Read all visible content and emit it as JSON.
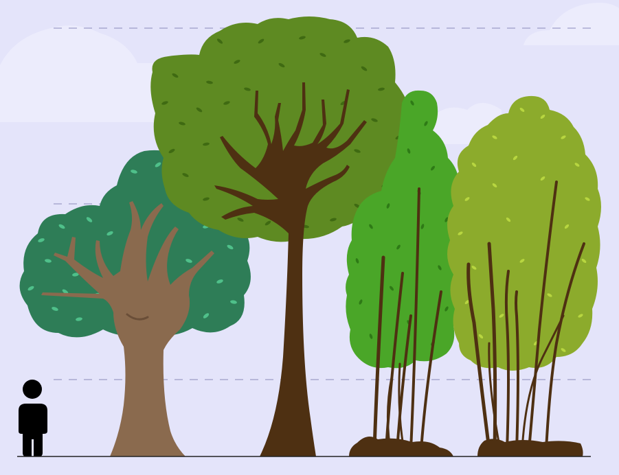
{
  "scene": {
    "background_color": "#e4e4fa",
    "cloud_color": "#ececfc",
    "guide_line_color": "#9c9cc8",
    "guide_line_count": 3,
    "ground_line_color": "#222222"
  },
  "figures": {
    "human": {
      "icon": "person-icon",
      "color": "#000000"
    },
    "trees": [
      {
        "id": "tree-1",
        "canopy_color": "#2e7d57",
        "leaf_mark_color": "#4fc08a",
        "trunk_color": "#8a6a4e"
      },
      {
        "id": "tree-2",
        "canopy_color": "#5e8a22",
        "leaf_mark_color": "#3f6a12",
        "trunk_color": "#4e3012"
      },
      {
        "id": "tree-3",
        "canopy_color": "#4aa628",
        "leaf_mark_color": "#2e7a16",
        "trunk_color": "#4e3012"
      },
      {
        "id": "tree-4",
        "canopy_color": "#8cab2c",
        "leaf_mark_color": "#b8d640",
        "trunk_color": "#4e3012"
      }
    ]
  }
}
